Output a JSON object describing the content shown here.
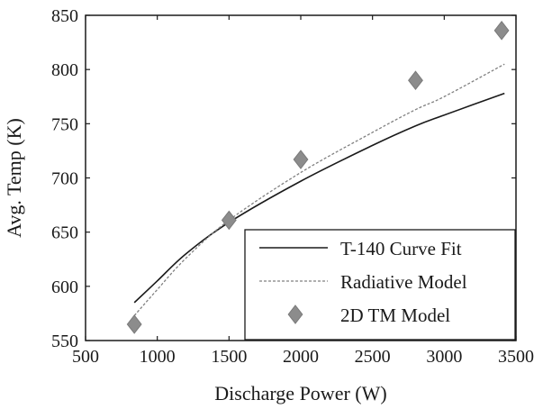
{
  "chart_data": {
    "type": "line",
    "xlabel": "Discharge Power (W)",
    "ylabel": "Avg. Temp (K)",
    "xlim": [
      500,
      3500
    ],
    "ylim": [
      550,
      850
    ],
    "xticks": [
      500,
      1000,
      1500,
      2000,
      2500,
      3000,
      3500
    ],
    "yticks": [
      550,
      600,
      650,
      700,
      750,
      800,
      850
    ],
    "grid": false,
    "legend_position": "bottom-right",
    "series": [
      {
        "name": "T-140 Curve Fit",
        "type": "line",
        "style": "solid",
        "color": "#1a1a1a",
        "x": [
          840,
          1000,
          1200,
          1500,
          2000,
          2500,
          2800,
          3000,
          3420
        ],
        "y": [
          585,
          605,
          630,
          659,
          697,
          730,
          748,
          758,
          778
        ]
      },
      {
        "name": "Radiative Model",
        "type": "line",
        "style": "dashed",
        "color": "#808080",
        "x": [
          840,
          1000,
          1200,
          1500,
          2000,
          2500,
          2800,
          3000,
          3420
        ],
        "y": [
          573,
          597,
          626,
          661,
          705,
          742,
          763,
          775,
          805
        ]
      },
      {
        "name": "2D TM Model",
        "type": "scatter",
        "marker": "diamond",
        "color": "#8c8c8c",
        "x": [
          840,
          1500,
          2000,
          2800,
          3400
        ],
        "y": [
          565,
          661,
          717,
          790,
          836
        ]
      }
    ]
  }
}
